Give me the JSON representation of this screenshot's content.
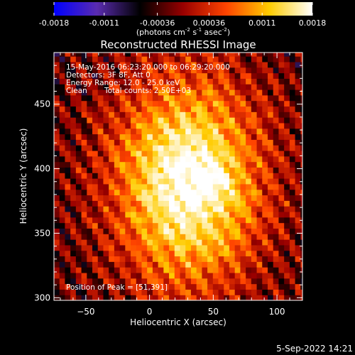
{
  "chart_data": {
    "type": "heatmap",
    "title": "Reconstructed RHESSI Image",
    "xlabel": "Heliocentric X (arcsec)",
    "ylabel": "Heliocentric Y (arcsec)",
    "xlim": [
      -75,
      120
    ],
    "ylim": [
      298,
      490
    ],
    "x_ticks": [
      -50,
      0,
      50,
      100
    ],
    "y_ticks": [
      300,
      350,
      400,
      450
    ],
    "colorbar": {
      "range": [
        -0.0018,
        0.0018
      ],
      "tick_values": [
        -0.0018,
        -0.0011,
        -0.00036,
        0.00036,
        0.0011,
        0.0018
      ],
      "tick_labels": [
        "-0.0018",
        "-0.0011",
        "-0.00036",
        "0.00036",
        "0.0011",
        "0.0018"
      ],
      "unit_prefix": "(photons cm",
      "unit_sup1": "-2",
      "unit_mid": " s",
      "unit_sup2": "-1",
      "unit_mid2": " asec",
      "unit_sup3": "-2",
      "unit_suffix": ")",
      "colormap": [
        "#0000ff",
        "#5a2bb0",
        "#000000",
        "#990000",
        "#ff4400",
        "#ffcc00",
        "#ffffff"
      ]
    },
    "annotations": {
      "line1": "15-May-2016 06:23:20.000 to 06:29:20.000",
      "line2": "Detectors: 3F 8F, Att 0",
      "line3": "Energy Range: 12.0 - 25.0 keV",
      "line4_label": "Clean",
      "line4_value": "Total counts: 2.50E+03",
      "peak": "Position of Peak = [51,391]"
    },
    "peak_position": [
      51,
      391
    ],
    "source": {
      "center": [
        30,
        390
      ],
      "sigma_x": 42,
      "sigma_y": 58
    }
  },
  "footer": {
    "timestamp": "5-Sep-2022 14:21"
  }
}
